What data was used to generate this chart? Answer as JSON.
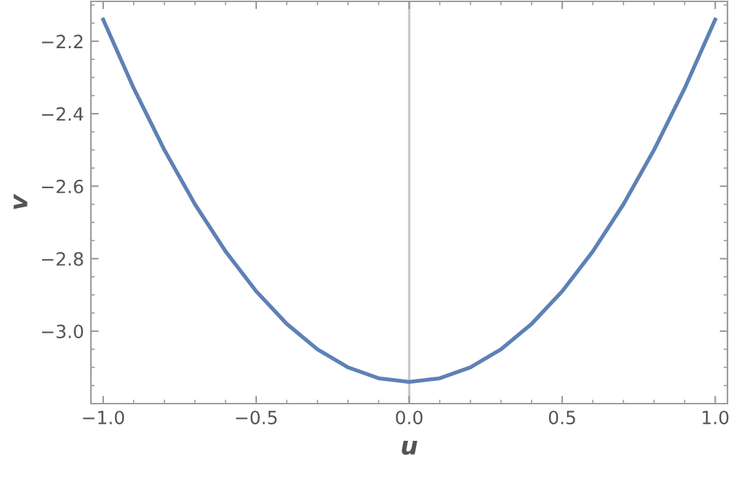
{
  "chart_data": {
    "type": "line",
    "xlabel": "u",
    "ylabel": "v",
    "x": [
      -1.0,
      -0.9,
      -0.8,
      -0.7,
      -0.6,
      -0.5,
      -0.4,
      -0.3,
      -0.2,
      -0.1,
      0.0,
      0.1,
      0.2,
      0.3,
      0.4,
      0.5,
      0.6,
      0.7,
      0.8,
      0.9,
      1.0
    ],
    "series": [
      {
        "color": "#5e81b5",
        "values": [
          -2.14,
          -2.33,
          -2.5,
          -2.65,
          -2.78,
          -2.89,
          -2.98,
          -3.05,
          -3.1,
          -3.13,
          -3.14,
          -3.13,
          -3.1,
          -3.05,
          -2.98,
          -2.89,
          -2.78,
          -2.65,
          -2.5,
          -2.33,
          -2.14
        ]
      }
    ],
    "xlim": [
      -1.04,
      1.04
    ],
    "ylim": [
      -3.2,
      -2.09
    ],
    "xticks": [
      {
        "value": -1.0,
        "label": "−1.0"
      },
      {
        "value": -0.5,
        "label": "−0.5"
      },
      {
        "value": 0.0,
        "label": "0.0"
      },
      {
        "value": 0.5,
        "label": "0.5"
      },
      {
        "value": 1.0,
        "label": "1.0"
      }
    ],
    "yticks": [
      {
        "value": -3.0,
        "label": "−3.0"
      },
      {
        "value": -2.8,
        "label": "−2.8"
      },
      {
        "value": -2.6,
        "label": "−2.6"
      },
      {
        "value": -2.4,
        "label": "−2.4"
      },
      {
        "value": -2.2,
        "label": "−2.2"
      }
    ],
    "ref_lines": [
      {
        "axis": "x",
        "value": 0,
        "color": "#c8c8c8"
      }
    ],
    "grid": false,
    "marker": "none",
    "line_style": "solid"
  }
}
